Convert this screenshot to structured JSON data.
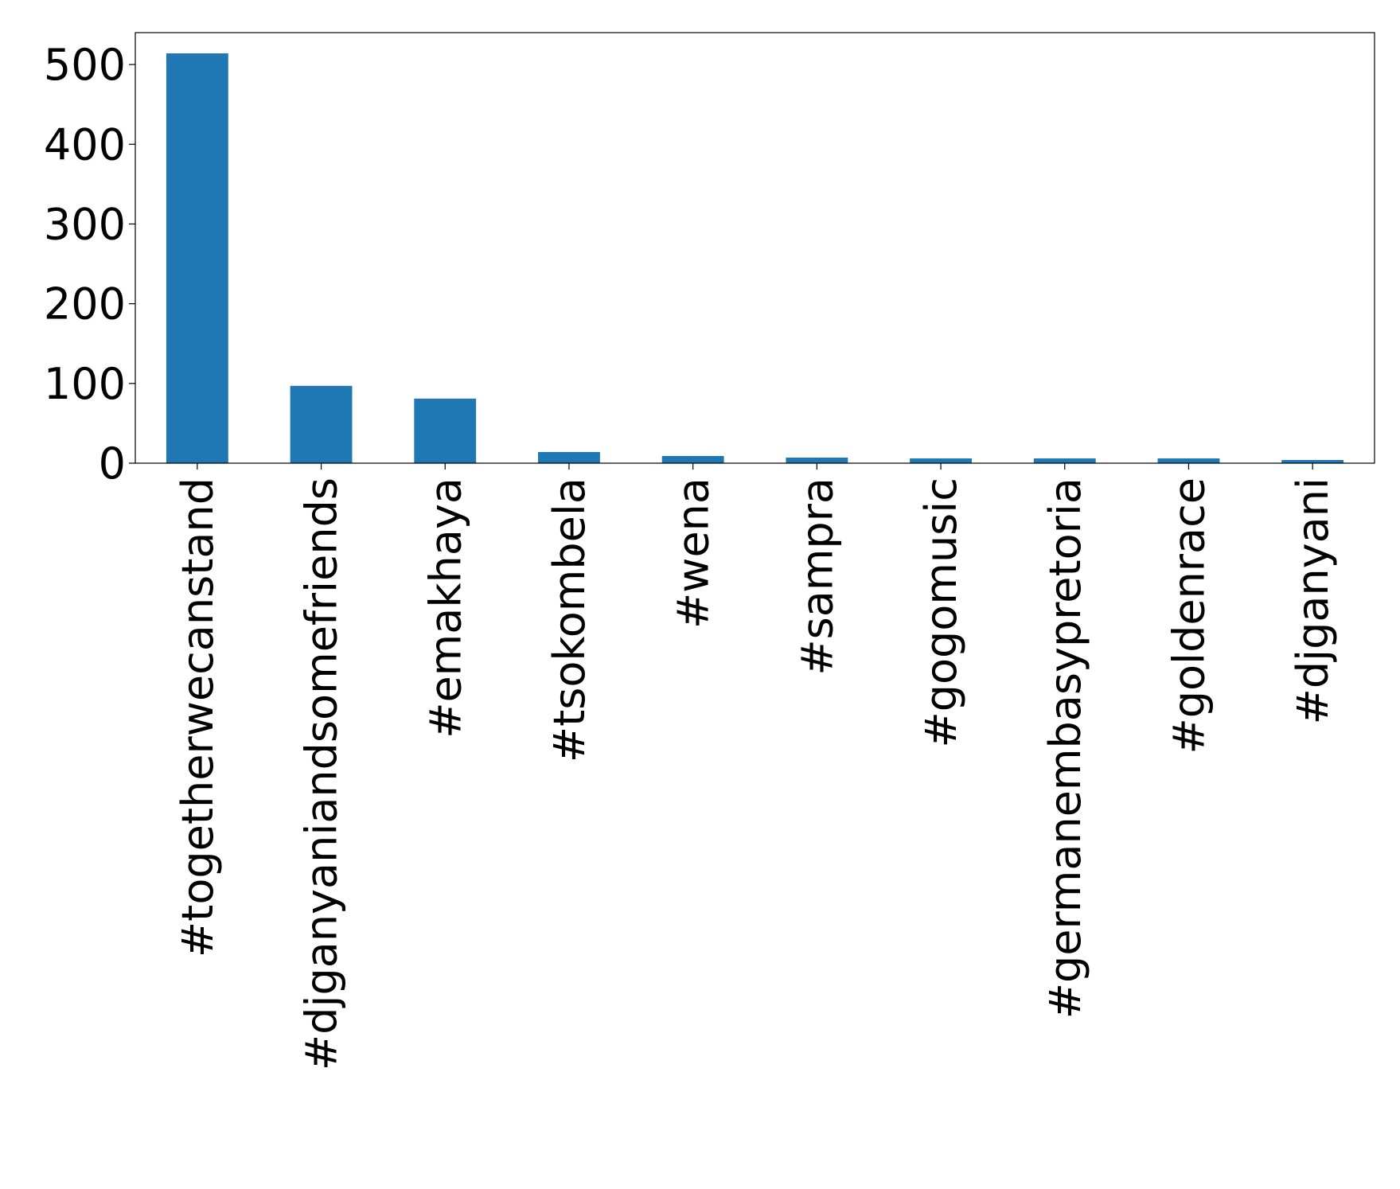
{
  "chart_data": {
    "type": "bar",
    "title": "",
    "xlabel": "",
    "ylabel": "",
    "categories": [
      "#togetherwecanstand",
      "#djganyaniandsomefriends",
      "#emakhaya",
      "#tsokombela",
      "#wena",
      "#sampra",
      "#gogomusic",
      "#germanembasypretoria",
      "#goldenrace",
      "#djganyani"
    ],
    "values": [
      514,
      97,
      81,
      14,
      9,
      7,
      6,
      6,
      6,
      4
    ],
    "ylim": [
      0,
      540
    ],
    "yticks": [
      0,
      100,
      200,
      300,
      400,
      500
    ],
    "bar_color": "#1f77b4",
    "grid": false,
    "legend": "none"
  }
}
